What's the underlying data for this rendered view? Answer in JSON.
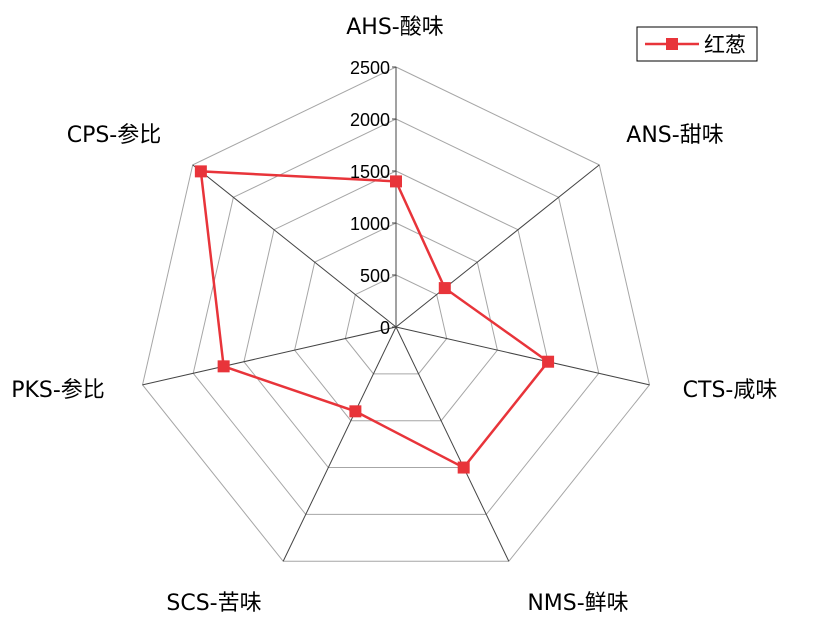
{
  "chart_data": {
    "type": "radar",
    "axes": [
      "AHS-酸味",
      "ANS-甜味",
      "CTS-咸味",
      "NMS-鲜味",
      "SCS-苦味",
      "PKS-参比",
      "CPS-参比"
    ],
    "ticks": [
      "0",
      "500",
      "1000",
      "1500",
      "2000",
      "2500"
    ],
    "range": [
      0,
      2500
    ],
    "series": [
      {
        "name": "红葱",
        "values": [
          1400,
          600,
          1500,
          1500,
          900,
          1700,
          2400
        ],
        "color": "#e8343a"
      }
    ],
    "legend_position": "top-right",
    "grid": true
  }
}
